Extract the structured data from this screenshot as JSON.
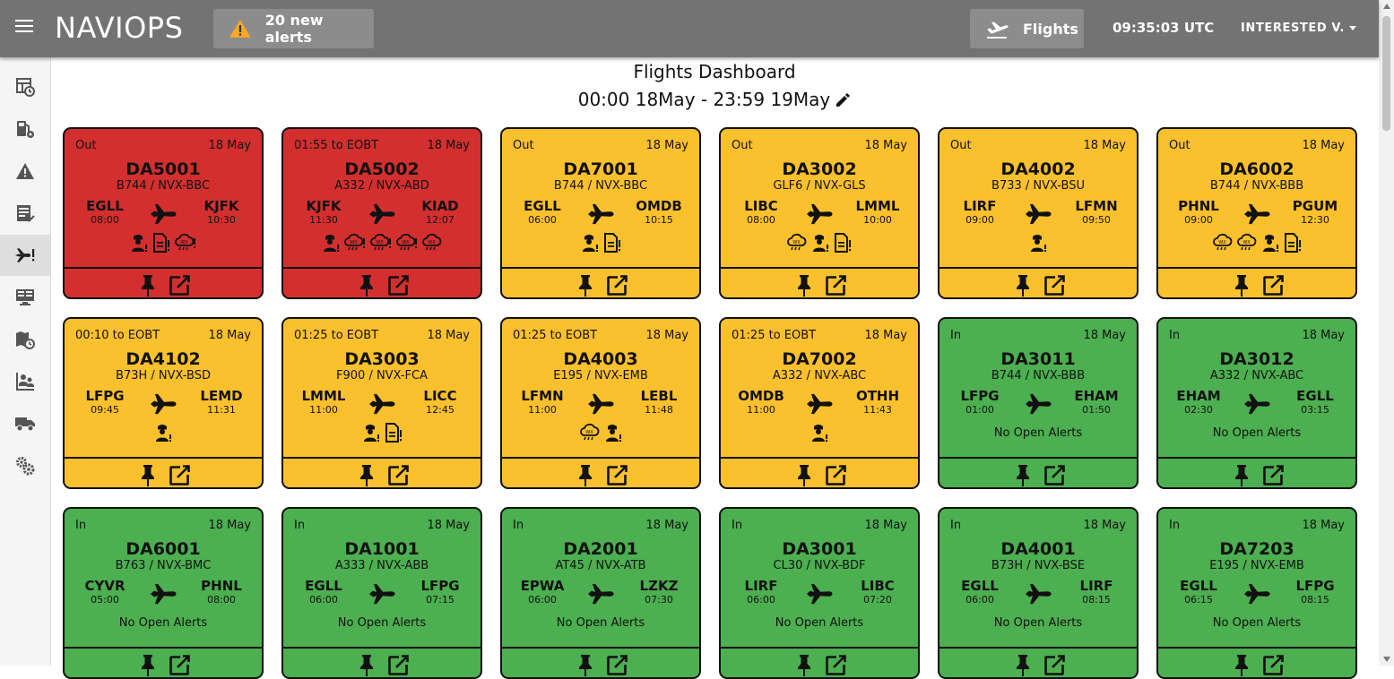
{
  "header": {
    "brand": "NAVIOPS",
    "alerts_label": "20 new alerts",
    "flights_label": "Flights",
    "clock": "09:35:03 UTC",
    "user": "INTERESTED V."
  },
  "sidebar": {
    "items": [
      {
        "name": "sidebar-item-schedule",
        "icon": "table-clock-icon",
        "active": false
      },
      {
        "name": "sidebar-item-fuel",
        "icon": "fuel-gear-icon",
        "active": false
      },
      {
        "name": "sidebar-item-alerts",
        "icon": "warning-icon",
        "active": false
      },
      {
        "name": "sidebar-item-checklist",
        "icon": "checklist-icon",
        "active": false
      },
      {
        "name": "sidebar-item-flights",
        "icon": "plane-alert-icon",
        "active": true
      },
      {
        "name": "sidebar-item-monitor",
        "icon": "monitor-icon",
        "active": false
      },
      {
        "name": "sidebar-item-map-history",
        "icon": "map-clock-icon",
        "active": false
      },
      {
        "name": "sidebar-item-crew",
        "icon": "people-chart-icon",
        "active": false
      },
      {
        "name": "sidebar-item-ground",
        "icon": "truck-icon",
        "active": false
      },
      {
        "name": "sidebar-item-settings",
        "icon": "gears-icon",
        "active": false
      }
    ]
  },
  "dashboard": {
    "title": "Flights Dashboard",
    "range": "00:00 18May - 23:59 19May"
  },
  "colors": {
    "red": "#d32f2f",
    "amber": "#fbc02d",
    "green": "#4caf50"
  },
  "flights": [
    {
      "status": "Out",
      "date": "18 May",
      "flight": "DA5001",
      "reg": "B744 / NVX-BBC",
      "dep": "EGLL",
      "dep_time": "08:00",
      "arr": "KJFK",
      "arr_time": "10:30",
      "color": "red",
      "alerts": [
        "crew-alert-icon",
        "document-alert-icon",
        "weather-alert-icon"
      ],
      "alert_text": ""
    },
    {
      "status": "01:55 to EOBT",
      "date": "18 May",
      "flight": "DA5002",
      "reg": "A332 / NVX-ABD",
      "dep": "KJFK",
      "dep_time": "11:30",
      "arr": "KIAD",
      "arr_time": "12:07",
      "color": "red",
      "alerts": [
        "crew-alert-icon",
        "weather-alert-icon",
        "weather-alert-icon",
        "weather-alert-icon",
        "weather-icon"
      ],
      "alert_text": ""
    },
    {
      "status": "Out",
      "date": "18 May",
      "flight": "DA7001",
      "reg": "B744 / NVX-BBC",
      "dep": "EGLL",
      "dep_time": "06:00",
      "arr": "OMDB",
      "arr_time": "10:15",
      "color": "amber",
      "alerts": [
        "crew-alert-icon",
        "document-alert-icon"
      ],
      "alert_text": ""
    },
    {
      "status": "Out",
      "date": "18 May",
      "flight": "DA3002",
      "reg": "GLF6 / NVX-GLS",
      "dep": "LIBC",
      "dep_time": "08:00",
      "arr": "LMML",
      "arr_time": "10:00",
      "color": "amber",
      "alerts": [
        "weather-icon",
        "crew-alert-icon",
        "document-alert-icon"
      ],
      "alert_text": ""
    },
    {
      "status": "Out",
      "date": "18 May",
      "flight": "DA4002",
      "reg": "B733 / NVX-BSU",
      "dep": "LIRF",
      "dep_time": "09:00",
      "arr": "LFMN",
      "arr_time": "09:50",
      "color": "amber",
      "alerts": [
        "crew-alert-icon"
      ],
      "alert_text": ""
    },
    {
      "status": "Out",
      "date": "18 May",
      "flight": "DA6002",
      "reg": "B744 / NVX-BBB",
      "dep": "PHNL",
      "dep_time": "09:00",
      "arr": "PGUM",
      "arr_time": "12:30",
      "color": "amber",
      "alerts": [
        "weather-icon",
        "weather-icon",
        "crew-alert-icon",
        "document-alert-icon"
      ],
      "alert_text": ""
    },
    {
      "status": "00:10 to EOBT",
      "date": "18 May",
      "flight": "DA4102",
      "reg": "B73H / NVX-BSD",
      "dep": "LFPG",
      "dep_time": "09:45",
      "arr": "LEMD",
      "arr_time": "11:31",
      "color": "amber",
      "alerts": [
        "crew-alert-icon"
      ],
      "alert_text": ""
    },
    {
      "status": "01:25 to EOBT",
      "date": "18 May",
      "flight": "DA3003",
      "reg": "F900 / NVX-FCA",
      "dep": "LMML",
      "dep_time": "11:00",
      "arr": "LICC",
      "arr_time": "12:45",
      "color": "amber",
      "alerts": [
        "crew-alert-icon",
        "document-alert-icon"
      ],
      "alert_text": ""
    },
    {
      "status": "01:25 to EOBT",
      "date": "18 May",
      "flight": "DA4003",
      "reg": "E195 / NVX-EMB",
      "dep": "LFMN",
      "dep_time": "11:00",
      "arr": "LEBL",
      "arr_time": "11:48",
      "color": "amber",
      "alerts": [
        "weather-icon",
        "crew-alert-icon"
      ],
      "alert_text": ""
    },
    {
      "status": "01:25 to EOBT",
      "date": "18 May",
      "flight": "DA7002",
      "reg": "A332 / NVX-ABC",
      "dep": "OMDB",
      "dep_time": "11:00",
      "arr": "OTHH",
      "arr_time": "11:43",
      "color": "amber",
      "alerts": [
        "crew-alert-icon"
      ],
      "alert_text": ""
    },
    {
      "status": "In",
      "date": "18 May",
      "flight": "DA3011",
      "reg": "B744 / NVX-BBB",
      "dep": "LFPG",
      "dep_time": "01:00",
      "arr": "EHAM",
      "arr_time": "01:50",
      "color": "green",
      "alerts": [],
      "alert_text": "No Open Alerts"
    },
    {
      "status": "In",
      "date": "18 May",
      "flight": "DA3012",
      "reg": "A332 / NVX-ABC",
      "dep": "EHAM",
      "dep_time": "02:30",
      "arr": "EGLL",
      "arr_time": "03:15",
      "color": "green",
      "alerts": [],
      "alert_text": "No Open Alerts"
    },
    {
      "status": "In",
      "date": "18 May",
      "flight": "DA6001",
      "reg": "B763 / NVX-BMC",
      "dep": "CYVR",
      "dep_time": "05:00",
      "arr": "PHNL",
      "arr_time": "08:00",
      "color": "green",
      "alerts": [],
      "alert_text": "No Open Alerts"
    },
    {
      "status": "In",
      "date": "18 May",
      "flight": "DA1001",
      "reg": "A333 / NVX-ABB",
      "dep": "EGLL",
      "dep_time": "06:00",
      "arr": "LFPG",
      "arr_time": "07:15",
      "color": "green",
      "alerts": [],
      "alert_text": "No Open Alerts"
    },
    {
      "status": "In",
      "date": "18 May",
      "flight": "DA2001",
      "reg": "AT45 / NVX-ATB",
      "dep": "EPWA",
      "dep_time": "06:00",
      "arr": "LZKZ",
      "arr_time": "07:30",
      "color": "green",
      "alerts": [],
      "alert_text": "No Open Alerts"
    },
    {
      "status": "In",
      "date": "18 May",
      "flight": "DA3001",
      "reg": "CL30 / NVX-BDF",
      "dep": "LIRF",
      "dep_time": "06:00",
      "arr": "LIBC",
      "arr_time": "07:20",
      "color": "green",
      "alerts": [],
      "alert_text": "No Open Alerts"
    },
    {
      "status": "In",
      "date": "18 May",
      "flight": "DA4001",
      "reg": "B73H / NVX-BSE",
      "dep": "EGLL",
      "dep_time": "06:00",
      "arr": "LIRF",
      "arr_time": "08:15",
      "color": "green",
      "alerts": [],
      "alert_text": "No Open Alerts"
    },
    {
      "status": "In",
      "date": "18 May",
      "flight": "DA7203",
      "reg": "E195 / NVX-EMB",
      "dep": "EGLL",
      "dep_time": "06:15",
      "arr": "LFPG",
      "arr_time": "08:15",
      "color": "green",
      "alerts": [],
      "alert_text": "No Open Alerts"
    }
  ]
}
